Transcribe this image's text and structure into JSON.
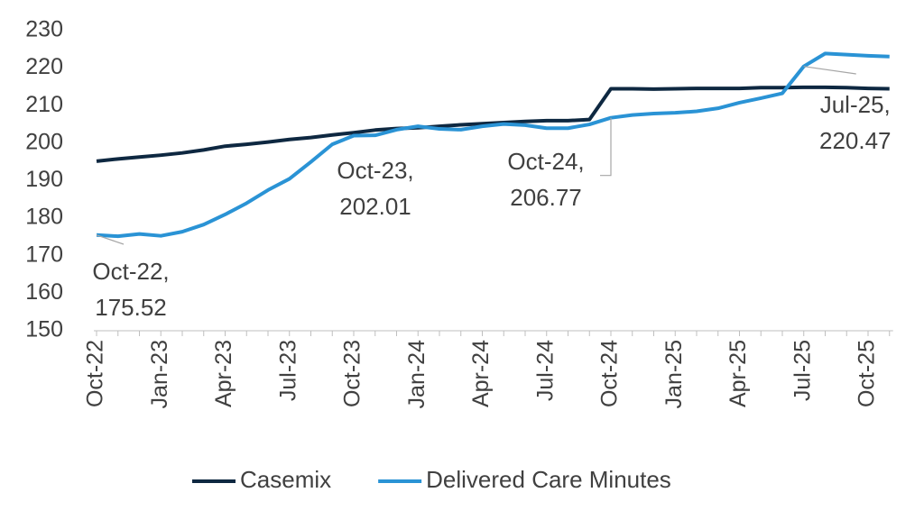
{
  "chart_data": {
    "type": "line",
    "categories": [
      "Oct-22",
      null,
      null,
      "Jan-23",
      null,
      null,
      "Apr-23",
      null,
      null,
      "Jul-23",
      null,
      null,
      "Oct-23",
      null,
      null,
      "Jan-24",
      null,
      null,
      "Apr-24",
      null,
      null,
      "Jul-24",
      null,
      null,
      "Oct-24",
      null,
      null,
      "Jan-25",
      null,
      null,
      "Apr-25",
      null,
      null,
      "Jul-25",
      null,
      null,
      "Oct-25",
      null
    ],
    "series": [
      {
        "name": "Casemix",
        "color": "#0e2841",
        "values": [
          195.2,
          195.8,
          196.3,
          196.8,
          197.4,
          198.2,
          199.2,
          199.7,
          200.3,
          201.0,
          201.5,
          202.2,
          202.8,
          203.5,
          203.9,
          204.1,
          204.5,
          204.9,
          205.2,
          205.5,
          205.8,
          206.0,
          206.0,
          206.3,
          214.5,
          214.5,
          214.4,
          214.5,
          214.6,
          214.6,
          214.6,
          214.8,
          214.8,
          214.9,
          214.9,
          214.8,
          214.6,
          214.5
        ]
      },
      {
        "name": "Delivered Care Minutes",
        "color": "#2a93d5",
        "values": [
          175.52,
          175.2,
          175.8,
          175.3,
          176.4,
          178.3,
          181.0,
          184.0,
          187.5,
          190.5,
          195.0,
          199.7,
          202.01,
          202.1,
          203.6,
          204.5,
          203.8,
          203.6,
          204.5,
          205.1,
          204.8,
          204.0,
          204.0,
          205.0,
          206.77,
          207.5,
          207.9,
          208.1,
          208.5,
          209.3,
          210.8,
          212.0,
          213.3,
          220.47,
          223.9,
          223.6,
          223.3,
          223.1
        ],
        "value_labels": [
          "Oct-22,\n175.52",
          null,
          null,
          null,
          null,
          null,
          null,
          null,
          null,
          null,
          null,
          null,
          "Oct-23,\n202.01",
          null,
          null,
          null,
          null,
          null,
          null,
          null,
          null,
          null,
          null,
          null,
          "Oct-24,\n206.77",
          null,
          null,
          null,
          null,
          null,
          null,
          null,
          null,
          "Jul-25,\n220.47",
          null,
          null,
          null,
          null
        ]
      }
    ],
    "ylim": [
      150,
      230
    ],
    "yticks": [
      150,
      160,
      170,
      180,
      190,
      200,
      210,
      220,
      230
    ],
    "grid": false,
    "legend": "bottom"
  }
}
